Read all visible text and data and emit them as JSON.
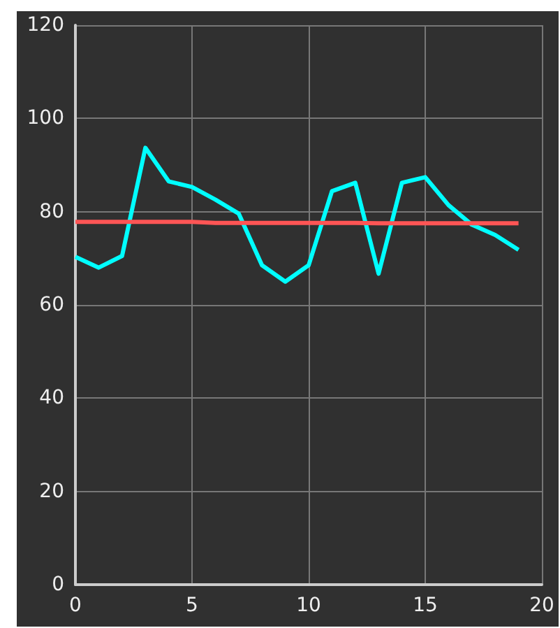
{
  "chart_data": {
    "type": "line",
    "x": [
      0,
      1,
      2,
      3,
      4,
      5,
      6,
      7,
      8,
      9,
      10,
      11,
      12,
      13,
      14,
      15,
      16,
      17,
      18,
      19
    ],
    "series": [
      {
        "color": "#00ffff",
        "values": [
          70.3,
          68,
          70.5,
          93.7,
          86.5,
          85.3,
          82.6,
          79.6,
          68.5,
          65,
          68.5,
          84.4,
          86.2,
          66.7,
          86.2,
          87.4,
          81.4,
          77.2,
          75,
          71.8
        ]
      },
      {
        "color": "#ff5555",
        "values": [
          77.8,
          77.8,
          77.8,
          77.8,
          77.8,
          77.8,
          77.6,
          77.6,
          77.6,
          77.6,
          77.6,
          77.6,
          77.6,
          77.5,
          77.5,
          77.5,
          77.5,
          77.5,
          77.5,
          77.5
        ]
      }
    ],
    "xlim": [
      0,
      20
    ],
    "xticks": [
      0,
      5,
      10,
      15,
      20
    ],
    "ylim": [
      0,
      120
    ],
    "yticks": [
      0,
      20,
      40,
      60,
      80,
      100,
      120
    ],
    "grid": true,
    "marker": "none",
    "line_style": "solid"
  }
}
